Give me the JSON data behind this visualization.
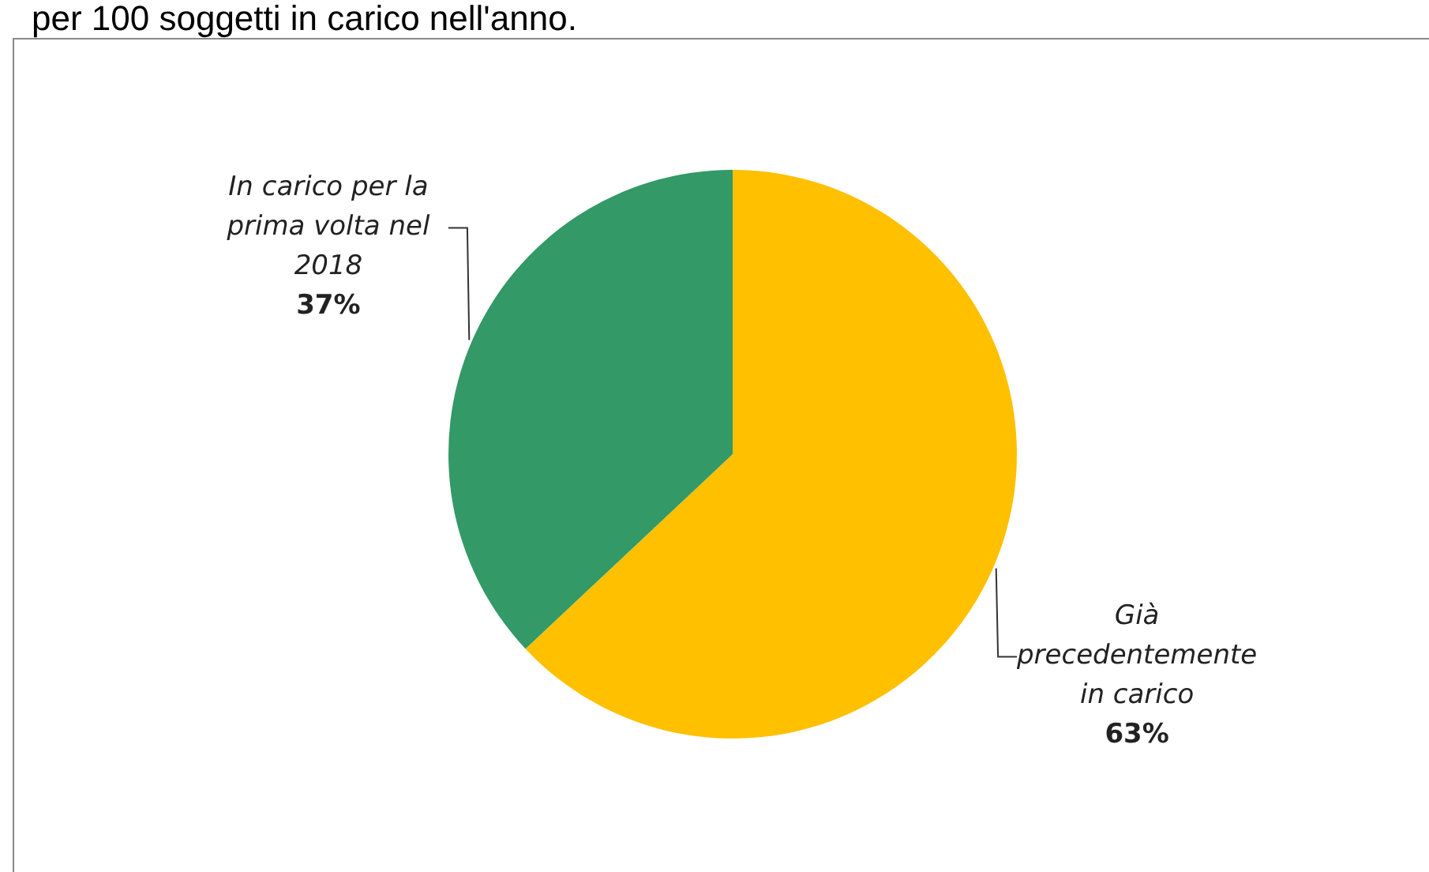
{
  "chart_data": {
    "type": "pie",
    "title": "per 100 soggetti in carico nell'anno.",
    "categories": [
      "Già precedentemente in carico",
      "In carico per la prima volta nel 2018"
    ],
    "values": [
      63,
      37
    ],
    "colors": [
      "#ffc000",
      "#339966"
    ],
    "value_labels": [
      "63%",
      "37%"
    ],
    "legend": false
  }
}
